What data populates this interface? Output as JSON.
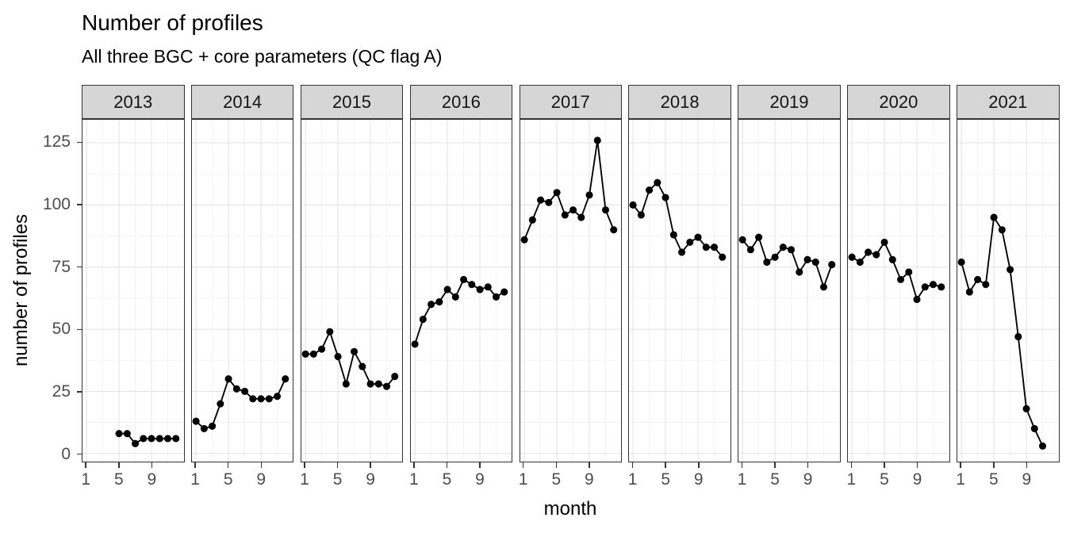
{
  "title": "Number of profiles",
  "subtitle": "All three BGC + core parameters (QC flag A)",
  "x_axis": {
    "label": "month",
    "tick_labels": [
      "1",
      "5",
      "9"
    ]
  },
  "y_axis": {
    "label": "number of profiles",
    "tick_labels": [
      "0",
      "25",
      "50",
      "75",
      "100",
      "125"
    ]
  },
  "chart_data": {
    "type": "line",
    "title": "Number of profiles",
    "subtitle": "All three BGC + core parameters (QC flag A)",
    "xlabel": "month",
    "ylabel": "number of profiles",
    "faceted_by": "year",
    "xlim": [
      1,
      12
    ],
    "ylim": [
      0,
      131
    ],
    "x_ticks": [
      1,
      5,
      9
    ],
    "x_minor_ticks": [
      3,
      7,
      11
    ],
    "y_ticks": [
      0,
      25,
      50,
      75,
      100,
      125
    ],
    "y_minor_ticks": [
      12.5,
      37.5,
      62.5,
      87.5,
      112.5
    ],
    "grid": "on",
    "legend": "none",
    "marker": "filled-circle",
    "facets": [
      {
        "year": "2013",
        "months": [
          5,
          6,
          7,
          8,
          9,
          10,
          11,
          12
        ],
        "values": [
          8,
          8,
          4,
          6,
          6,
          6,
          6,
          6
        ]
      },
      {
        "year": "2014",
        "months": [
          1,
          2,
          3,
          4,
          5,
          6,
          7,
          8,
          9,
          10,
          11,
          12
        ],
        "values": [
          13,
          10,
          11,
          20,
          30,
          26,
          25,
          22,
          22,
          22,
          23,
          30
        ]
      },
      {
        "year": "2015",
        "months": [
          1,
          2,
          3,
          4,
          5,
          6,
          7,
          8,
          9,
          10,
          11,
          12
        ],
        "values": [
          40,
          40,
          42,
          49,
          39,
          28,
          41,
          35,
          28,
          28,
          27,
          31
        ]
      },
      {
        "year": "2016",
        "months": [
          1,
          2,
          3,
          4,
          5,
          6,
          7,
          8,
          9,
          10,
          11,
          12
        ],
        "values": [
          44,
          54,
          60,
          61,
          66,
          63,
          70,
          68,
          66,
          67,
          63,
          65
        ]
      },
      {
        "year": "2017",
        "months": [
          1,
          2,
          3,
          4,
          5,
          6,
          7,
          8,
          9,
          10,
          11,
          12
        ],
        "values": [
          86,
          94,
          102,
          101,
          105,
          96,
          98,
          95,
          104,
          126,
          98,
          90
        ]
      },
      {
        "year": "2018",
        "months": [
          1,
          2,
          3,
          4,
          5,
          6,
          7,
          8,
          9,
          10,
          11,
          12
        ],
        "values": [
          100,
          96,
          106,
          109,
          103,
          88,
          81,
          85,
          87,
          83,
          83,
          79
        ]
      },
      {
        "year": "2019",
        "months": [
          1,
          2,
          3,
          4,
          5,
          6,
          7,
          8,
          9,
          10,
          11,
          12
        ],
        "values": [
          86,
          82,
          87,
          77,
          79,
          83,
          82,
          73,
          78,
          77,
          67,
          76
        ]
      },
      {
        "year": "2020",
        "months": [
          1,
          2,
          3,
          4,
          5,
          6,
          7,
          8,
          9,
          10,
          11,
          12
        ],
        "values": [
          79,
          77,
          81,
          80,
          85,
          78,
          70,
          73,
          62,
          67,
          68,
          67
        ]
      },
      {
        "year": "2021",
        "months": [
          1,
          2,
          3,
          4,
          5,
          6,
          7,
          8,
          9,
          10,
          11
        ],
        "values": [
          77,
          65,
          70,
          68,
          95,
          90,
          74,
          47,
          18,
          10,
          3
        ]
      }
    ]
  },
  "style": {
    "background": "#ffffff",
    "strip_fill": "#d6d6d6",
    "strip_text_color": "#141414",
    "panel_border": "#333333",
    "grid_major": "#e4e4e4",
    "grid_minor": "#f1f1f1",
    "line_color": "#000000",
    "point_color": "#000000",
    "tick_mark_color": "#333333",
    "tick_label_color": "#4d4d4d",
    "text_color": "#000000"
  }
}
